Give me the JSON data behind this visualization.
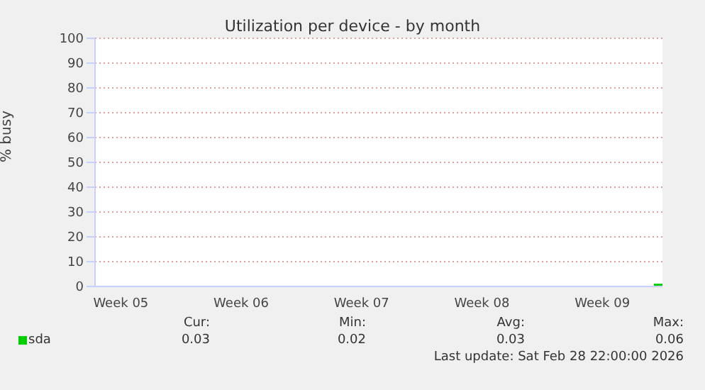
{
  "chart_data": {
    "type": "line",
    "title": "Utilization per device - by month",
    "ylabel": "% busy",
    "categories": [
      null,
      null,
      null,
      "Week 05",
      null,
      null,
      null,
      null,
      null,
      null,
      null,
      null,
      null,
      null,
      null,
      null,
      null,
      "Week 06",
      null,
      null,
      null,
      null,
      null,
      null,
      null,
      null,
      null,
      null,
      null,
      null,
      null,
      "Week 07",
      null,
      null,
      null,
      null,
      null,
      null,
      null,
      null,
      null,
      null,
      null,
      null,
      null,
      "Week 08",
      null,
      null,
      null,
      null,
      null,
      null,
      null,
      null,
      null,
      null,
      null,
      null,
      null,
      "Week 09",
      null,
      null,
      null,
      null,
      null,
      null,
      null
    ],
    "series": [
      {
        "name": "sda",
        "color": "#00cc00",
        "values": [
          null,
          null,
          null,
          null,
          null,
          null,
          null,
          null,
          null,
          null,
          null,
          null,
          null,
          null,
          null,
          null,
          null,
          null,
          null,
          null,
          null,
          null,
          null,
          null,
          null,
          null,
          null,
          null,
          null,
          null,
          null,
          null,
          null,
          null,
          null,
          null,
          null,
          null,
          null,
          null,
          null,
          null,
          null,
          null,
          null,
          null,
          null,
          null,
          null,
          null,
          null,
          null,
          null,
          null,
          null,
          null,
          null,
          null,
          null,
          null,
          null,
          null,
          null,
          null,
          null,
          0,
          0
        ]
      }
    ],
    "ylim": [
      0,
      100
    ],
    "yticks": [
      0,
      10,
      20,
      30,
      40,
      50,
      60,
      70,
      80,
      90,
      100
    ],
    "grid": "y",
    "legend": "bottom",
    "marker": "none",
    "annotations": [
      "Cur:",
      "Min:",
      "Avg:",
      "Max:",
      "0.03",
      "0.02",
      "0.03",
      "0.06",
      "Last update: Sat Feb 28 22:00:00 2026"
    ]
  }
}
